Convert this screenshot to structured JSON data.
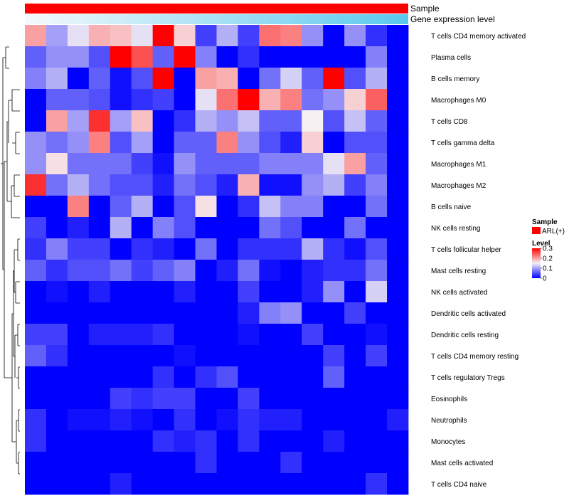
{
  "chart_data": {
    "type": "heatmap",
    "title": "",
    "annotations": [
      {
        "label": "Sample",
        "legend_title": "Sample",
        "legend_item": "ARL(+)",
        "color": "#ff0000"
      },
      {
        "label": "Gene expression level"
      }
    ],
    "expression_gradient": [
      "#f4fafc",
      "#5ac8ee"
    ],
    "rows": [
      "T cells CD4 memory activated",
      "Plasma cells",
      "B cells memory",
      "Macrophages M0",
      "T cells CD8",
      "T cells gamma delta",
      "Macrophages M1",
      "Macrophages M2",
      "B cells naive",
      "NK cells resting",
      "T cells follicular helper",
      "Mast cells resting",
      "NK cells activated",
      "Dendritic cells activated",
      "Dendritic cells resting",
      "T cells CD4 memory resting",
      "T cells regulatory  Tregs",
      "Eosinophils",
      "Neutrophils",
      "Monocytes",
      "Mast cells activated",
      "T cells CD4 naive"
    ],
    "n_columns": 18,
    "values": [
      [
        0.2,
        0.1,
        0.14,
        0.19,
        0.18,
        0.14,
        0.3,
        0.17,
        0.04,
        0.11,
        0.04,
        0.23,
        0.22,
        0.09,
        0.0,
        0.09,
        0.03,
        0.0
      ],
      [
        0.06,
        0.09,
        0.09,
        0.05,
        0.3,
        0.25,
        0.06,
        0.3,
        0.08,
        0.0,
        0.03,
        0.0,
        0.0,
        0.0,
        0.0,
        0.0,
        0.08,
        0.0
      ],
      [
        0.08,
        0.11,
        0.0,
        0.06,
        0.01,
        0.05,
        0.3,
        0.0,
        0.2,
        0.19,
        0.0,
        0.07,
        0.13,
        0.06,
        0.3,
        0.05,
        0.11,
        0.0
      ],
      [
        0.0,
        0.06,
        0.06,
        0.05,
        0.01,
        0.03,
        0.04,
        0.0,
        0.14,
        0.23,
        0.3,
        0.19,
        0.22,
        0.07,
        0.09,
        0.17,
        0.24,
        0.0
      ],
      [
        0.0,
        0.2,
        0.1,
        0.27,
        0.1,
        0.18,
        0.0,
        0.03,
        0.11,
        0.09,
        0.12,
        0.06,
        0.06,
        0.15,
        0.05,
        0.12,
        0.06,
        0.0
      ],
      [
        0.09,
        0.07,
        0.09,
        0.22,
        0.05,
        0.1,
        0.0,
        0.06,
        0.06,
        0.22,
        0.09,
        0.05,
        0.02,
        0.17,
        0.0,
        0.05,
        0.05,
        0.0
      ],
      [
        0.09,
        0.16,
        0.07,
        0.07,
        0.07,
        0.04,
        0.01,
        0.09,
        0.06,
        0.06,
        0.06,
        0.08,
        0.08,
        0.08,
        0.14,
        0.2,
        0.06,
        0.0
      ],
      [
        0.27,
        0.07,
        0.11,
        0.07,
        0.05,
        0.05,
        0.02,
        0.07,
        0.05,
        0.02,
        0.19,
        0.01,
        0.01,
        0.09,
        0.11,
        0.04,
        0.08,
        0.0
      ],
      [
        0.0,
        0.0,
        0.22,
        0.0,
        0.06,
        0.11,
        0.0,
        0.05,
        0.16,
        0.0,
        0.03,
        0.12,
        0.08,
        0.08,
        0.0,
        0.0,
        0.07,
        0.0
      ],
      [
        0.04,
        0.0,
        0.02,
        0.0,
        0.11,
        0.0,
        0.08,
        0.05,
        0.0,
        0.0,
        0.0,
        0.07,
        0.05,
        0.0,
        0.0,
        0.07,
        0.0,
        0.0
      ],
      [
        0.03,
        0.08,
        0.04,
        0.04,
        0.0,
        0.03,
        0.02,
        0.0,
        0.07,
        0.0,
        0.03,
        0.03,
        0.03,
        0.11,
        0.03,
        0.01,
        0.05,
        0.0
      ],
      [
        0.06,
        0.03,
        0.05,
        0.05,
        0.07,
        0.04,
        0.06,
        0.08,
        0.0,
        0.02,
        0.07,
        0.01,
        0.0,
        0.02,
        0.03,
        0.03,
        0.07,
        0.0
      ],
      [
        0.0,
        0.01,
        0.0,
        0.02,
        0.0,
        0.0,
        0.0,
        0.02,
        0.0,
        0.0,
        0.04,
        0.0,
        0.0,
        0.02,
        0.09,
        0.0,
        0.13,
        0.0
      ],
      [
        0.0,
        0.0,
        0.0,
        0.0,
        0.0,
        0.0,
        0.0,
        0.0,
        0.0,
        0.0,
        0.02,
        0.08,
        0.09,
        0.0,
        0.0,
        0.04,
        0.0,
        0.0
      ],
      [
        0.04,
        0.04,
        0.0,
        0.02,
        0.02,
        0.02,
        0.03,
        0.0,
        0.0,
        0.0,
        0.01,
        0.0,
        0.0,
        0.04,
        0.0,
        0.0,
        0.01,
        0.0
      ],
      [
        0.06,
        0.03,
        0.0,
        0.0,
        0.0,
        0.0,
        0.0,
        0.01,
        0.0,
        0.0,
        0.0,
        0.0,
        0.0,
        0.0,
        0.04,
        0.0,
        0.04,
        0.0
      ],
      [
        0.0,
        0.0,
        0.0,
        0.0,
        0.0,
        0.0,
        0.03,
        0.0,
        0.03,
        0.05,
        0.0,
        0.0,
        0.0,
        0.0,
        0.06,
        0.0,
        0.0,
        0.0
      ],
      [
        0.0,
        0.0,
        0.0,
        0.0,
        0.04,
        0.03,
        0.04,
        0.04,
        0.0,
        0.0,
        0.04,
        0.0,
        0.0,
        0.0,
        0.0,
        0.0,
        0.0,
        0.0
      ],
      [
        0.03,
        0.0,
        0.01,
        0.01,
        0.02,
        0.01,
        0.0,
        0.03,
        0.0,
        0.01,
        0.03,
        0.02,
        0.02,
        0.0,
        0.0,
        0.0,
        0.0,
        0.02
      ],
      [
        0.03,
        0.0,
        0.0,
        0.0,
        0.0,
        0.0,
        0.03,
        0.02,
        0.03,
        0.0,
        0.03,
        0.0,
        0.0,
        0.0,
        0.02,
        0.0,
        0.0,
        0.0
      ],
      [
        0.0,
        0.0,
        0.0,
        0.0,
        0.0,
        0.0,
        0.0,
        0.0,
        0.03,
        0.0,
        0.0,
        0.0,
        0.03,
        0.0,
        0.0,
        0.0,
        0.0,
        0.0
      ],
      [
        0.0,
        0.0,
        0.0,
        0.0,
        0.02,
        0.0,
        0.0,
        0.0,
        0.0,
        0.0,
        0.0,
        0.0,
        0.0,
        0.0,
        0.0,
        0.0,
        0.03,
        0.0
      ]
    ],
    "color_scale": {
      "min": 0,
      "mid": 0.15,
      "max": 0.3,
      "low_color": "#0000ff",
      "mid_color": "#f6f0f3",
      "high_color": "#ff0000"
    },
    "legend": {
      "title": "Level",
      "ticks": [
        0.3,
        0.2,
        0.1,
        0
      ],
      "tick_labels": [
        "0.3",
        "0.2",
        "0.1",
        "0"
      ],
      "placement": "right"
    },
    "dendrogram": {
      "side": "left",
      "rows_clustered": true
    }
  }
}
